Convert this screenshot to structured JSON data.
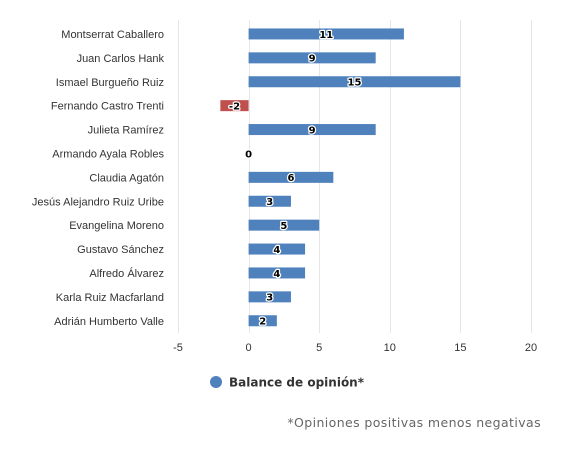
{
  "chart_data": {
    "type": "bar",
    "orientation": "horizontal",
    "title": "",
    "xlabel": "",
    "ylabel": "",
    "categories": [
      "Montserrat Caballero",
      "Juan Carlos Hank",
      "Ismael Burgueño Ruiz",
      "Fernando Castro Trenti",
      "Julieta Ramírez",
      "Armando Ayala Robles",
      "Claudia Agatón",
      "Jesús Alejandro Ruiz Uribe",
      "Evangelina Moreno",
      "Gustavo Sánchez",
      "Alfredo Álvarez",
      "Karla Ruiz Macfarland",
      "Adrián Humberto Valle"
    ],
    "series": [
      {
        "name": "Balance de opinión*",
        "values": [
          11,
          9,
          15,
          -2,
          9,
          0,
          6,
          3,
          5,
          4,
          4,
          3,
          2
        ]
      }
    ],
    "xlim": [
      -5,
      20
    ],
    "xticks": [
      -5,
      0,
      5,
      10,
      15,
      20
    ],
    "xtick_labels": [
      "-5",
      "0",
      "5",
      "10",
      "15",
      "20"
    ],
    "grid": true,
    "legend_position": "bottom",
    "colors": {
      "positive": "#4f81bd",
      "negative": "#c0504d"
    },
    "footnote": "*Opiniones positivas menos negativas"
  }
}
